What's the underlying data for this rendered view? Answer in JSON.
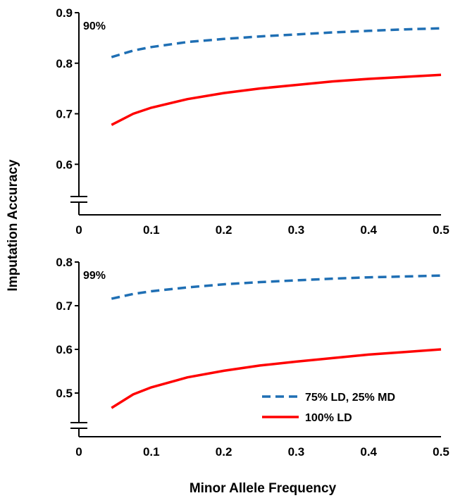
{
  "figure": {
    "ylabel": "Imputation Accuracy",
    "xlabel": "Minor Allele Frequency"
  },
  "legend": {
    "position": "bottom-right of lower panel",
    "items": [
      {
        "label": "75% LD, 25% MD",
        "color": "#1f6fb4",
        "style": "dashed"
      },
      {
        "label": "100% LD",
        "color": "#ff0000",
        "style": "solid"
      }
    ]
  },
  "chart_data": [
    {
      "type": "line",
      "panel_label": "90%",
      "xlim": [
        0,
        0.5
      ],
      "ylim": [
        0.5,
        0.9
      ],
      "axis_break": true,
      "xticks": [
        "0",
        "0.1",
        "0.2",
        "0.3",
        "0.4",
        "0.5"
      ],
      "yticks": [
        "0.6",
        "0.7",
        "0.8",
        "0.9"
      ],
      "grid": false,
      "x": [
        0.045,
        0.075,
        0.1,
        0.15,
        0.2,
        0.25,
        0.3,
        0.35,
        0.4,
        0.45,
        0.5
      ],
      "series": [
        {
          "name": "75% LD, 25% MD",
          "color": "#1f6fb4",
          "dash": "dashed",
          "values": [
            0.812,
            0.825,
            0.832,
            0.842,
            0.848,
            0.853,
            0.857,
            0.861,
            0.864,
            0.867,
            0.869
          ]
        },
        {
          "name": "100% LD",
          "color": "#ff0000",
          "dash": "solid",
          "values": [
            0.678,
            0.7,
            0.712,
            0.729,
            0.741,
            0.75,
            0.757,
            0.764,
            0.769,
            0.773,
            0.777
          ]
        }
      ]
    },
    {
      "type": "line",
      "panel_label": "99%",
      "xlim": [
        0,
        0.5
      ],
      "ylim": [
        0.4,
        0.8
      ],
      "axis_break": true,
      "xticks": [
        "0",
        "0.1",
        "0.2",
        "0.3",
        "0.4",
        "0.5"
      ],
      "yticks": [
        "0.5",
        "0.6",
        "0.7",
        "0.8"
      ],
      "grid": false,
      "x": [
        0.045,
        0.075,
        0.1,
        0.15,
        0.2,
        0.25,
        0.3,
        0.35,
        0.4,
        0.45,
        0.5
      ],
      "series": [
        {
          "name": "75% LD, 25% MD",
          "color": "#1f6fb4",
          "dash": "dashed",
          "values": [
            0.716,
            0.727,
            0.733,
            0.742,
            0.749,
            0.754,
            0.758,
            0.762,
            0.765,
            0.767,
            0.769
          ]
        },
        {
          "name": "100% LD",
          "color": "#ff0000",
          "dash": "solid",
          "values": [
            0.466,
            0.497,
            0.513,
            0.536,
            0.551,
            0.563,
            0.572,
            0.58,
            0.588,
            0.594,
            0.6
          ]
        }
      ]
    }
  ]
}
